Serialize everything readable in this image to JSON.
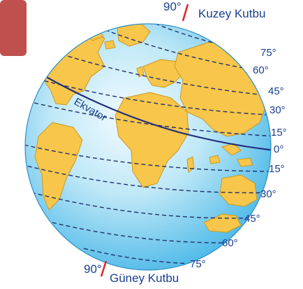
{
  "poles": {
    "north": {
      "name": "Kuzey Kutbu",
      "degree": "90°"
    },
    "south": {
      "name": "Güney Kutbu",
      "degree": "90°"
    }
  },
  "equator": {
    "label": "Ekvator",
    "degree": "0°"
  },
  "latitudes_north": [
    "75°",
    "60°",
    "45°",
    "30°",
    "15°"
  ],
  "latitudes_south": [
    "15°",
    "30°",
    "45°",
    "60°",
    "75°"
  ],
  "colors": {
    "ocean_light": "#dff3fb",
    "ocean_dark": "#3fb3e6",
    "land": "#f7c64a",
    "land_stroke": "#c99a22",
    "latitude_lines": "#22316b",
    "equator_line": "#232d7a",
    "pole_mark": "#e0242a",
    "corner_tab": "#c0504d"
  }
}
